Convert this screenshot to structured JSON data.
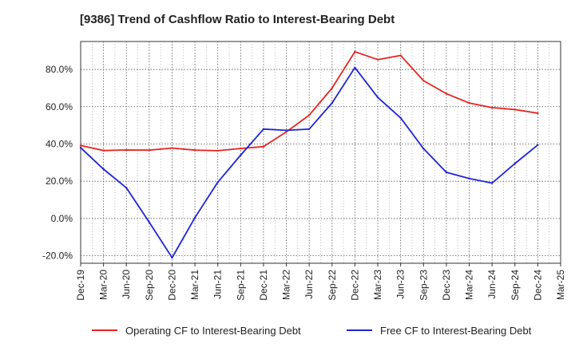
{
  "chart_data": {
    "type": "line",
    "title": "[9386]  Trend of Cashflow Ratio to Interest-Bearing Debt",
    "xlabel": "",
    "ylabel": "",
    "x": [
      "Dec-19",
      "Mar-20",
      "Jun-20",
      "Sep-20",
      "Dec-20",
      "Mar-21",
      "Jun-21",
      "Sep-21",
      "Dec-21",
      "Mar-22",
      "Jun-22",
      "Sep-22",
      "Dec-22",
      "Mar-23",
      "Jun-23",
      "Sep-23",
      "Dec-23",
      "Mar-24",
      "Jun-24",
      "Sep-24",
      "Dec-24",
      "Mar-25"
    ],
    "ylim": [
      -24,
      95
    ],
    "yticks": [
      -20,
      0,
      20,
      40,
      60,
      80
    ],
    "ytick_labels": [
      "-20.0%",
      "0.0%",
      "20.0%",
      "40.0%",
      "60.0%",
      "80.0%"
    ],
    "grid": true,
    "legend_position": "bottom",
    "series": [
      {
        "name": "Operating CF to Interest-Bearing Debt",
        "color": "#e8231f",
        "values": [
          39.2,
          36.5,
          36.8,
          36.7,
          37.8,
          36.7,
          36.4,
          37.6,
          38.6,
          46.5,
          55.5,
          70.0,
          89.5,
          85.3,
          87.5,
          74.0,
          67.0,
          62.0,
          59.5,
          58.5,
          56.5,
          null
        ]
      },
      {
        "name": "Free CF to Interest-Bearing Debt",
        "color": "#1f25d6",
        "values": [
          38.0,
          26.5,
          16.5,
          -2.0,
          -21.0,
          0.5,
          19.5,
          34.0,
          48.0,
          47.3,
          48.0,
          62.0,
          81.0,
          65.0,
          54.0,
          37.5,
          24.8,
          21.5,
          19.0,
          29.5,
          39.5,
          null
        ]
      }
    ]
  }
}
